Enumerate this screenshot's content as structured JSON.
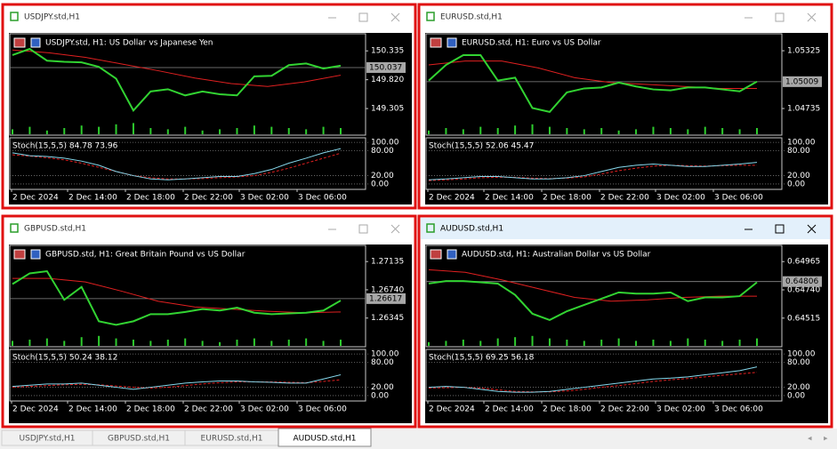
{
  "windows": [
    {
      "title": "USDJPY.std,H1",
      "header": "USDJPY.std, H1:  US Dollar vs Japanese Yen",
      "active": false,
      "ylim": [
        148.83,
        150.64
      ],
      "yticks": [
        150.335,
        {
          "value": 149.82,
          "label": "149.820"
        },
        149.305
      ],
      "current": 150.037,
      "price": [
        150.26,
        150.37,
        150.16,
        150.14,
        150.13,
        150.05,
        149.84,
        149.27,
        149.61,
        149.65,
        149.54,
        149.61,
        149.56,
        149.54,
        149.88,
        149.89,
        150.08,
        150.11,
        150.02,
        150.07
      ],
      "ma": [
        150.35,
        150.3,
        150.22,
        150.1,
        149.98,
        149.85,
        149.75,
        149.7,
        149.78,
        149.9
      ],
      "volume": [
        4,
        6,
        3,
        5,
        7,
        6,
        8,
        9,
        5,
        4,
        6,
        3,
        4,
        5,
        7,
        6,
        5,
        4,
        6,
        5
      ],
      "stoch_label": "Stoch(15,5,5) 84.78 73.96",
      "stoch_ylim": [
        -13,
        111
      ],
      "stoch_ticks": [
        {
          "value": 100,
          "label": "100.00"
        },
        {
          "value": 80,
          "label": "80.00"
        },
        {
          "value": 20,
          "label": "20.00"
        },
        {
          "value": 0,
          "label": "0.00"
        }
      ],
      "stoch_main": [
        75,
        68,
        66,
        62,
        55,
        45,
        30,
        20,
        12,
        10,
        12,
        15,
        18,
        18,
        25,
        35,
        50,
        62,
        75,
        85
      ],
      "stoch_signal": [
        70,
        67,
        63,
        58,
        50,
        40,
        30,
        20,
        15,
        12,
        12,
        13,
        15,
        17,
        20,
        28,
        38,
        50,
        62,
        74
      ],
      "dates": [
        "2 Dec 2024",
        "2 Dec 14:00",
        "2 Dec 18:00",
        "2 Dec 22:00",
        "3 Dec 02:00",
        "3 Dec 06:00"
      ]
    },
    {
      "title": "EURUSD.std,H1",
      "header": "EURUSD.std, H1:  Euro vs US Dollar",
      "active": false,
      "ylim": [
        1.04463,
        1.05498
      ],
      "yticks": [
        1.05325,
        1.04735
      ],
      "current": 1.05009,
      "price": [
        1.0502,
        1.0518,
        1.0528,
        1.0528,
        1.0502,
        1.0505,
        1.0474,
        1.047,
        1.049,
        1.0494,
        1.0495,
        1.05,
        1.0496,
        1.0493,
        1.0492,
        1.0495,
        1.0495,
        1.0493,
        1.0491,
        1.0501
      ],
      "ma": [
        1.0518,
        1.0522,
        1.0522,
        1.0515,
        1.0505,
        1.05,
        1.0498,
        1.0496,
        1.0494,
        1.0494
      ],
      "volume": [
        3,
        5,
        4,
        6,
        5,
        7,
        8,
        6,
        5,
        4,
        5,
        3,
        4,
        6,
        5,
        4,
        6,
        5,
        4,
        5
      ],
      "stoch_label": "Stoch(15,5,5) 52.06 45.47",
      "stoch_ylim": [
        -13,
        111
      ],
      "stoch_ticks": [
        {
          "value": 100,
          "label": "100.00"
        },
        {
          "value": 80,
          "label": "80.00"
        },
        {
          "value": 20,
          "label": "20.00"
        },
        {
          "value": 0,
          "label": "0.00"
        }
      ],
      "stoch_main": [
        10,
        12,
        15,
        18,
        18,
        15,
        12,
        12,
        15,
        20,
        30,
        40,
        45,
        48,
        45,
        42,
        42,
        45,
        48,
        52
      ],
      "stoch_signal": [
        8,
        10,
        12,
        15,
        16,
        16,
        14,
        13,
        14,
        17,
        24,
        32,
        38,
        43,
        45,
        44,
        43,
        44,
        45,
        45
      ],
      "dates": [
        "2 Dec 2024",
        "2 Dec 14:00",
        "2 Dec 18:00",
        "2 Dec 22:00",
        "3 Dec 02:00",
        "3 Dec 06:00"
      ]
    },
    {
      "title": "GBPUSD.std,H1",
      "header": "GBPUSD.std, H1:  Great Britain Pound vs US Dollar",
      "active": false,
      "ylim": [
        1.25944,
        1.27361
      ],
      "yticks": [
        1.27135,
        {
          "value": 1.2674,
          "label": "1.26740"
        },
        1.26345
      ],
      "current": 1.26617,
      "price": [
        1.2682,
        1.2697,
        1.27,
        1.266,
        1.2678,
        1.263,
        1.2625,
        1.263,
        1.264,
        1.264,
        1.2643,
        1.2647,
        1.2645,
        1.2649,
        1.2642,
        1.264,
        1.2641,
        1.2642,
        1.2645,
        1.2659
      ],
      "ma": [
        1.269,
        1.269,
        1.2685,
        1.2672,
        1.2658,
        1.265,
        1.2647,
        1.2644,
        1.2642,
        1.2643
      ],
      "volume": [
        4,
        5,
        6,
        4,
        7,
        8,
        6,
        5,
        4,
        5,
        6,
        4,
        3,
        5,
        6,
        4,
        5,
        6,
        4,
        5
      ],
      "stoch_label": "Stoch(15,5,5) 50.24 38.12",
      "stoch_ylim": [
        -13,
        111
      ],
      "stoch_ticks": [
        {
          "value": 100,
          "label": "100.00"
        },
        {
          "value": 80,
          "label": "80.00"
        },
        {
          "value": 20,
          "label": "20.00"
        },
        {
          "value": 0,
          "label": "0.00"
        }
      ],
      "stoch_main": [
        22,
        25,
        28,
        28,
        30,
        25,
        20,
        15,
        20,
        25,
        30,
        33,
        35,
        35,
        33,
        32,
        30,
        30,
        40,
        50
      ],
      "stoch_signal": [
        20,
        22,
        24,
        26,
        27,
        26,
        23,
        20,
        18,
        20,
        24,
        28,
        31,
        33,
        33,
        33,
        32,
        31,
        34,
        38
      ],
      "dates": [
        "2 Dec 2024",
        "2 Dec 14:00",
        "2 Dec 18:00",
        "2 Dec 22:00",
        "3 Dec 02:00",
        "3 Dec 06:00"
      ]
    },
    {
      "title": "AUDUSD.std,H1",
      "header": "AUDUSD.std, H1:  Australian Dollar vs US Dollar",
      "active": true,
      "ylim": [
        0.64287,
        0.65094
      ],
      "yticks": [
        0.64965,
        {
          "value": 0.6474,
          "label": "0.64740"
        },
        0.64515
      ],
      "current": 0.64806,
      "price": [
        0.6479,
        0.6481,
        0.6481,
        0.648,
        0.6479,
        0.647,
        0.6455,
        0.645,
        0.6457,
        0.6462,
        0.6467,
        0.6472,
        0.6471,
        0.6471,
        0.6472,
        0.6465,
        0.6468,
        0.6468,
        0.6469,
        0.648
      ],
      "ma": [
        0.649,
        0.6488,
        0.6482,
        0.6475,
        0.6468,
        0.6465,
        0.6466,
        0.6468,
        0.6469,
        0.6469
      ],
      "volume": [
        3,
        4,
        5,
        4,
        6,
        7,
        8,
        6,
        5,
        4,
        5,
        6,
        4,
        5,
        4,
        6,
        5,
        4,
        5,
        6
      ],
      "stoch_label": "Stoch(15,5,5) 69.25 56.18",
      "stoch_ylim": [
        -13,
        111
      ],
      "stoch_ticks": [
        {
          "value": 100,
          "label": "100.00"
        },
        {
          "value": 80,
          "label": "80.00"
        },
        {
          "value": 20,
          "label": "20.00"
        },
        {
          "value": 0,
          "label": "0.00"
        }
      ],
      "stoch_main": [
        20,
        22,
        20,
        15,
        10,
        8,
        8,
        10,
        15,
        20,
        25,
        30,
        35,
        40,
        42,
        45,
        50,
        55,
        60,
        69
      ],
      "stoch_signal": [
        18,
        19,
        20,
        18,
        14,
        10,
        9,
        9,
        11,
        15,
        20,
        24,
        29,
        34,
        38,
        41,
        45,
        49,
        52,
        56
      ],
      "dates": [
        "2 Dec 2024",
        "2 Dec 14:00",
        "2 Dec 18:00",
        "2 Dec 22:00",
        "3 Dec 02:00",
        "3 Dec 06:00"
      ]
    }
  ],
  "tabs": [
    "USDJPY.std,H1",
    "GBPUSD.std,H1",
    "EURUSD.std,H1",
    "AUDUSD.std,H1"
  ],
  "active_tab": 3
}
